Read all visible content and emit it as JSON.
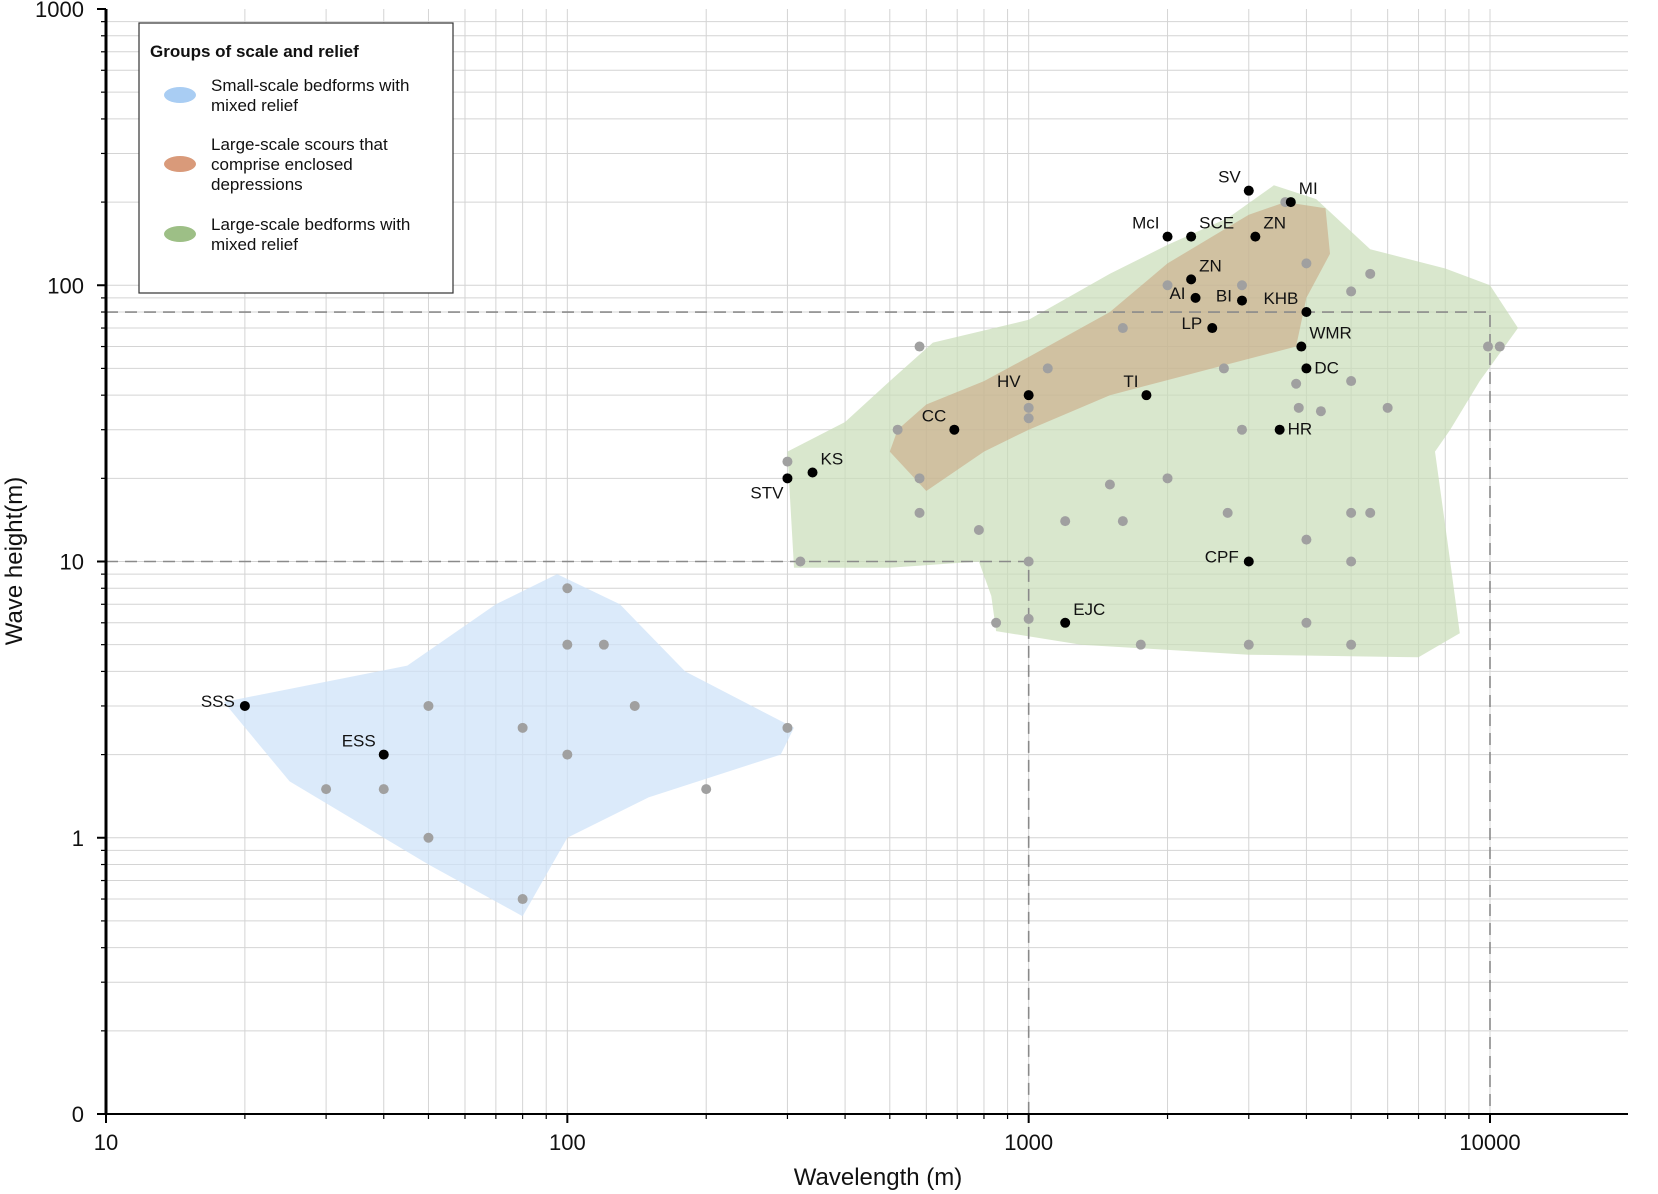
{
  "chart_data": {
    "type": "scatter",
    "xlabel": "Wavelength (m)",
    "ylabel": "Wave height(m)",
    "x_scale": "log",
    "y_scale": "log",
    "xlim": [
      10,
      15000
    ],
    "ylim": [
      0.1,
      1000
    ],
    "x_ticks": [
      {
        "value": 10,
        "label": "10"
      },
      {
        "value": 100,
        "label": "100"
      },
      {
        "value": 1000,
        "label": "1000"
      },
      {
        "value": 10000,
        "label": "10000"
      }
    ],
    "y_ticks": [
      {
        "value": 0.1,
        "label": "0"
      },
      {
        "value": 1,
        "label": "1"
      },
      {
        "value": 10,
        "label": "10"
      },
      {
        "value": 100,
        "label": "100"
      },
      {
        "value": 1000,
        "label": "1000"
      }
    ],
    "grid": true,
    "legend": {
      "title": "Groups of scale and relief",
      "position": "top-left",
      "entries": [
        {
          "lines": [
            "Small-scale bedforms with",
            "mixed relief"
          ],
          "color": "#a9cdf3"
        },
        {
          "lines": [
            "Large-scale scours that",
            "comprise enclosed",
            "depressions"
          ],
          "color": "#d99a7a"
        },
        {
          "lines": [
            "Large-scale bedforms with",
            "mixed relief"
          ],
          "color": "#9dbf86"
        }
      ]
    },
    "regions": [
      {
        "name": "Small-scale bedforms with mixed relief",
        "color": "#cfe3f8",
        "opacity": 0.75,
        "polygon": [
          [
            18,
            3.1
          ],
          [
            45,
            4.2
          ],
          [
            70,
            7
          ],
          [
            95,
            9
          ],
          [
            130,
            7
          ],
          [
            180,
            4
          ],
          [
            310,
            2.5
          ],
          [
            290,
            2
          ],
          [
            150,
            1.4
          ],
          [
            100,
            1
          ],
          [
            80,
            0.52
          ],
          [
            50,
            0.8
          ],
          [
            25,
            1.6
          ]
        ]
      },
      {
        "name": "Large-scale bedforms with mixed relief",
        "color": "#c9ddb8",
        "opacity": 0.7,
        "polygon": [
          [
            300,
            25
          ],
          [
            400,
            32
          ],
          [
            500,
            45
          ],
          [
            620,
            62
          ],
          [
            1000,
            75
          ],
          [
            1500,
            110
          ],
          [
            2000,
            140
          ],
          [
            2700,
            175
          ],
          [
            3400,
            230
          ],
          [
            4200,
            205
          ],
          [
            5500,
            135
          ],
          [
            8000,
            115
          ],
          [
            10000,
            100
          ],
          [
            11500,
            70
          ],
          [
            9500,
            45
          ],
          [
            8200,
            30
          ],
          [
            7600,
            25
          ],
          [
            8200,
            10
          ],
          [
            8600,
            5.5
          ],
          [
            7000,
            4.5
          ],
          [
            3000,
            4.6
          ],
          [
            1300,
            5
          ],
          [
            850,
            5.6
          ],
          [
            830,
            7.5
          ],
          [
            780,
            10
          ],
          [
            500,
            9.5
          ],
          [
            310,
            9.5
          ]
        ]
      },
      {
        "name": "Large-scale scours that comprise enclosed depressions",
        "color": "#c9a27e",
        "opacity": 0.55,
        "polygon": [
          [
            520,
            30
          ],
          [
            600,
            37
          ],
          [
            800,
            45
          ],
          [
            1000,
            55
          ],
          [
            1500,
            80
          ],
          [
            2000,
            120
          ],
          [
            2500,
            150
          ],
          [
            3000,
            180
          ],
          [
            3600,
            200
          ],
          [
            4400,
            190
          ],
          [
            4500,
            130
          ],
          [
            4000,
            90
          ],
          [
            3800,
            60
          ],
          [
            2500,
            50
          ],
          [
            1500,
            40
          ],
          [
            1000,
            30
          ],
          [
            800,
            25
          ],
          [
            600,
            18
          ],
          [
            500,
            25
          ]
        ]
      }
    ],
    "guide_boxes": [
      {
        "x": [
          10,
          1000
        ],
        "y": [
          0.1,
          10
        ]
      },
      {
        "x": [
          10,
          10000
        ],
        "y": [
          0.1,
          80
        ]
      }
    ],
    "labeled_points": [
      {
        "label": "SSS",
        "x": 20,
        "y": 3,
        "pos": "left"
      },
      {
        "label": "ESS",
        "x": 40,
        "y": 2,
        "pos": "upper-left"
      },
      {
        "label": "STV",
        "x": 300,
        "y": 20,
        "pos": "lower-left"
      },
      {
        "label": "KS",
        "x": 340,
        "y": 21,
        "pos": "upper-right"
      },
      {
        "label": "CC",
        "x": 690,
        "y": 30,
        "pos": "upper-left"
      },
      {
        "label": "HV",
        "x": 1000,
        "y": 40,
        "pos": "upper-left"
      },
      {
        "label": "TI",
        "x": 1800,
        "y": 40,
        "pos": "upper-left"
      },
      {
        "label": "EJC",
        "x": 1200,
        "y": 6,
        "pos": "upper-right"
      },
      {
        "label": "CPF",
        "x": 3000,
        "y": 10,
        "pos": "left"
      },
      {
        "label": "LP",
        "x": 2500,
        "y": 70,
        "pos": "left"
      },
      {
        "label": "AI",
        "x": 2300,
        "y": 90,
        "pos": "left"
      },
      {
        "label": "ZN",
        "x": 2250,
        "y": 105,
        "pos": "upper-right"
      },
      {
        "label": "BI",
        "x": 2900,
        "y": 88,
        "pos": "left"
      },
      {
        "label": "McI",
        "x": 2000,
        "y": 150,
        "pos": "upper-left"
      },
      {
        "label": "SCE",
        "x": 2250,
        "y": 150,
        "pos": "upper-right"
      },
      {
        "label": "ZN",
        "x": 3100,
        "y": 150,
        "pos": "upper-right"
      },
      {
        "label": "SV",
        "x": 3000,
        "y": 220,
        "pos": "upper-left"
      },
      {
        "label": "MI",
        "x": 3700,
        "y": 200,
        "pos": "upper-right"
      },
      {
        "label": "KHB",
        "x": 4000,
        "y": 80,
        "pos": "upper-left"
      },
      {
        "label": "WMR",
        "x": 3900,
        "y": 60,
        "pos": "upper-right"
      },
      {
        "label": "DC",
        "x": 4000,
        "y": 50,
        "pos": "right"
      },
      {
        "label": "HR",
        "x": 3500,
        "y": 30,
        "pos": "right"
      }
    ],
    "unlabeled_points": [
      [
        30,
        1.5
      ],
      [
        40,
        1.5
      ],
      [
        50,
        3
      ],
      [
        50,
        1
      ],
      [
        80,
        2.5
      ],
      [
        80,
        0.6
      ],
      [
        100,
        8
      ],
      [
        100,
        5
      ],
      [
        100,
        2
      ],
      [
        120,
        5
      ],
      [
        140,
        3
      ],
      [
        200,
        1.5
      ],
      [
        300,
        2.5
      ],
      [
        300,
        23
      ],
      [
        320,
        10
      ],
      [
        520,
        30
      ],
      [
        580,
        60
      ],
      [
        580,
        20
      ],
      [
        580,
        15
      ],
      [
        780,
        13
      ],
      [
        850,
        6
      ],
      [
        1000,
        36
      ],
      [
        1000,
        33
      ],
      [
        1000,
        10
      ],
      [
        1000,
        6.2
      ],
      [
        1100,
        50
      ],
      [
        1200,
        14
      ],
      [
        1500,
        19
      ],
      [
        1600,
        70
      ],
      [
        1600,
        14
      ],
      [
        1750,
        5
      ],
      [
        2000,
        100
      ],
      [
        2000,
        20
      ],
      [
        2650,
        50
      ],
      [
        2700,
        15
      ],
      [
        2900,
        100
      ],
      [
        2900,
        30
      ],
      [
        3000,
        5
      ],
      [
        3600,
        200
      ],
      [
        3800,
        44
      ],
      [
        3850,
        36
      ],
      [
        4000,
        120
      ],
      [
        4000,
        12
      ],
      [
        4000,
        6
      ],
      [
        4300,
        35
      ],
      [
        5000,
        95
      ],
      [
        5000,
        45
      ],
      [
        5000,
        15
      ],
      [
        5000,
        10
      ],
      [
        5000,
        5
      ],
      [
        5500,
        110
      ],
      [
        5500,
        15
      ],
      [
        6000,
        36
      ],
      [
        9900,
        60
      ],
      [
        10500,
        60
      ]
    ]
  }
}
